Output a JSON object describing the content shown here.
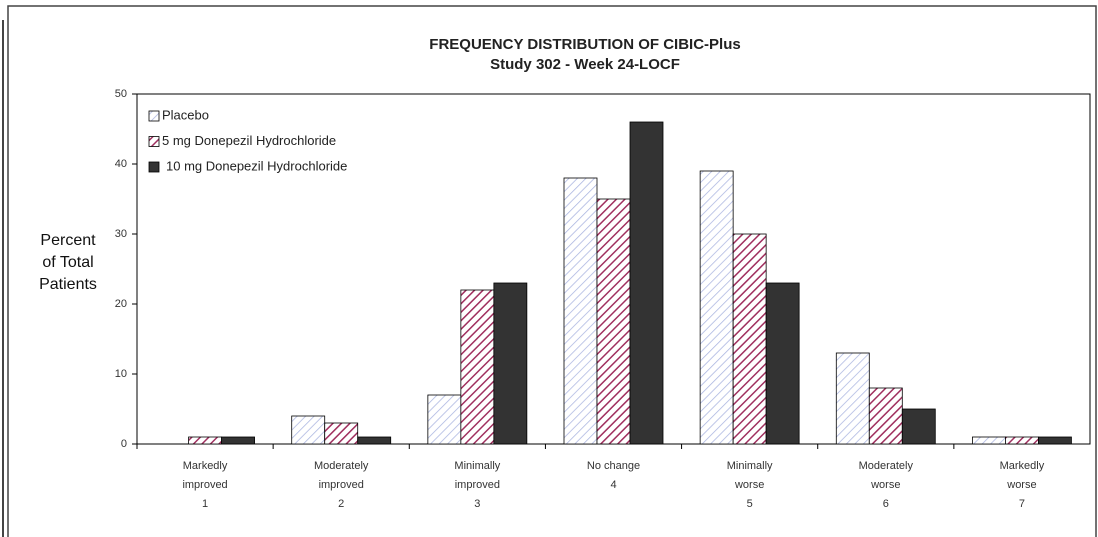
{
  "chart_data": {
    "type": "bar",
    "title": "FREQUENCY DISTRIBUTION OF CIBIC-Plus",
    "subtitle": "Study 302 - Week 24-LOCF",
    "y_label": [
      "Percent",
      "of Total",
      "Patients"
    ],
    "categories": [
      [
        "Markedly",
        "improved",
        "1"
      ],
      [
        "Moderately",
        "improved",
        "2"
      ],
      [
        "Minimally",
        "improved",
        "3"
      ],
      [
        "No change",
        "4"
      ],
      [
        "Minimally",
        "worse",
        "5"
      ],
      [
        "Moderately",
        "worse",
        "6"
      ],
      [
        "Markedly",
        "worse",
        "7"
      ]
    ],
    "series": [
      {
        "name": "Placebo",
        "color": "#a9b4e0",
        "hatch": true,
        "values": [
          0,
          4,
          7,
          38,
          39,
          13,
          1
        ]
      },
      {
        "name": "5 mg Donepezil Hydrochloride",
        "color": "#a0305f",
        "hatch": true,
        "values": [
          1,
          3,
          22,
          35,
          30,
          8,
          1
        ]
      },
      {
        "name": "10 mg Donepezil Hydrochloride",
        "color": "#333333",
        "hatch": false,
        "values": [
          1,
          1,
          23,
          46,
          23,
          5,
          1
        ]
      }
    ],
    "ylim": [
      0,
      50
    ],
    "yticks": [
      0,
      10,
      20,
      30,
      40,
      50
    ],
    "legend": "upper-left"
  }
}
